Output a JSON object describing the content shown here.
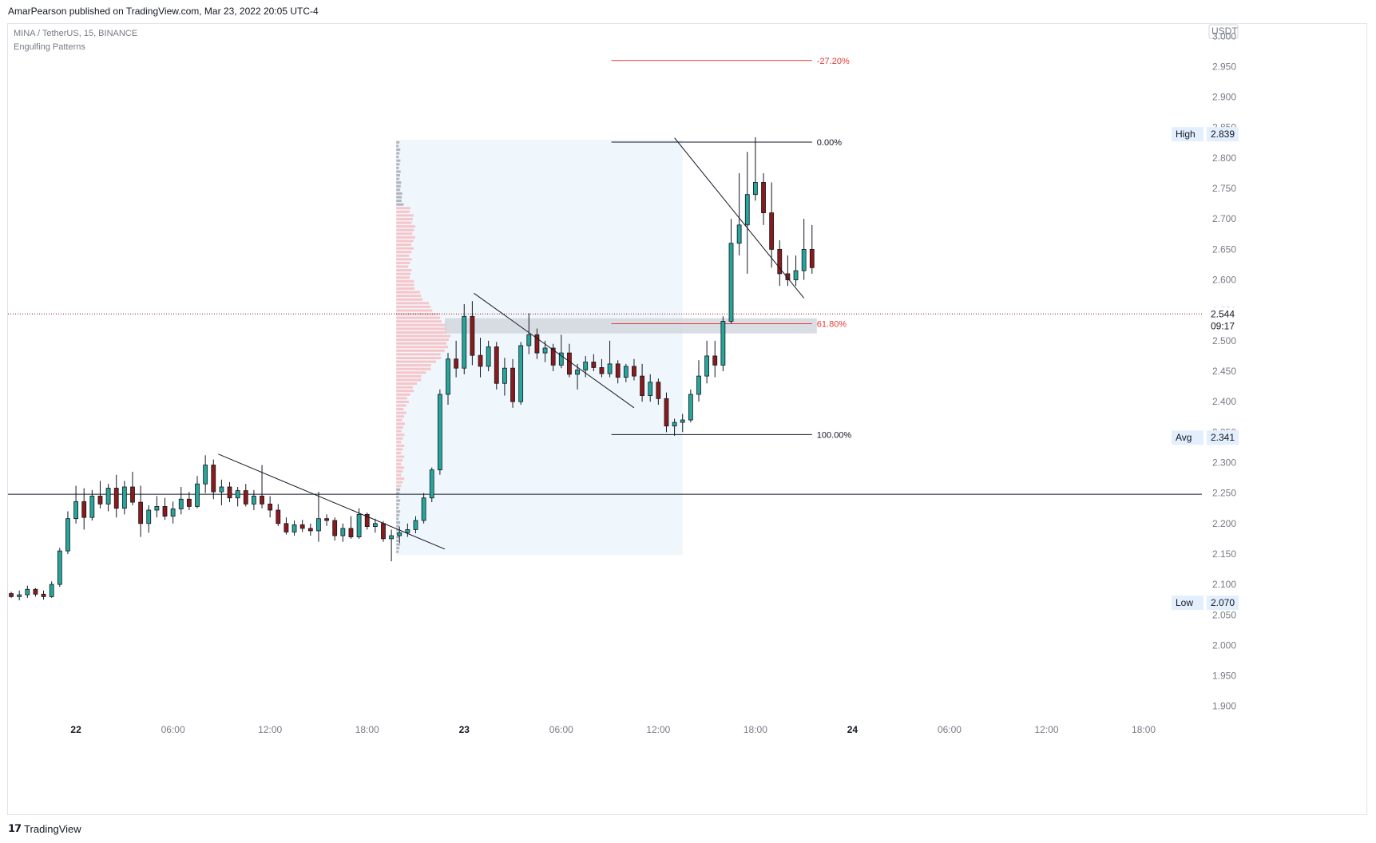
{
  "header": {
    "published": "AmarPearson published on TradingView.com, Mar 23, 2022 20:05 UTC-4"
  },
  "legend": {
    "symbol": "MINA / TetherUS, 15, BINANCE",
    "indicator": "Engulfing Patterns"
  },
  "footer": {
    "brand": "TradingView",
    "logo_icon": "tradingview-logo-icon"
  },
  "colors": {
    "up": "#26a69a",
    "down": "#8b1a1a",
    "candle_border": "#131722",
    "fib_red": "#e53935",
    "profile_grey": "#b2b5be",
    "profile_red": "#f7c5c9",
    "range_fill": "#e8f3fb",
    "zone_fill": "#d1d4dc"
  },
  "chart_data": {
    "type": "candlestick",
    "title": "MINA / TetherUS, 15, BINANCE",
    "price_axis": {
      "currency": "USDT",
      "ticks": [
        "3.000",
        "2.950",
        "2.900",
        "2.850",
        "2.800",
        "2.750",
        "2.700",
        "2.650",
        "2.600",
        "2.550",
        "2.500",
        "2.450",
        "2.400",
        "2.350",
        "2.300",
        "2.250",
        "2.200",
        "2.150",
        "2.100",
        "2.050",
        "2.000",
        "1.950",
        "1.900"
      ],
      "tick_values": [
        3.0,
        2.95,
        2.9,
        2.85,
        2.8,
        2.75,
        2.7,
        2.65,
        2.6,
        2.55,
        2.5,
        2.45,
        2.4,
        2.35,
        2.3,
        2.25,
        2.2,
        2.15,
        2.1,
        2.05,
        2.0,
        1.95,
        1.9
      ],
      "ylim": [
        1.88,
        3.02
      ]
    },
    "time_axis": {
      "ticks": [
        "22",
        "06:00",
        "12:00",
        "18:00",
        "23",
        "06:00",
        "12:00",
        "18:00",
        "24",
        "06:00",
        "12:00",
        "18:00"
      ],
      "tick_hours": [
        0,
        6,
        12,
        18,
        24,
        30,
        36,
        42,
        48,
        54,
        60,
        66
      ]
    },
    "time_range_hours": [
      -4.2,
      69.6
    ],
    "price_labels": {
      "high": {
        "label": "High",
        "value": "2.839",
        "y": 2.839
      },
      "last": {
        "value": "2.544",
        "countdown": "09:17",
        "y": 2.544
      },
      "avg": {
        "label": "Avg",
        "value": "2.341",
        "y": 2.341
      },
      "low": {
        "label": "Low",
        "value": "2.070",
        "y": 2.07
      }
    },
    "fib_levels": [
      {
        "label": "-27.20%",
        "price": 2.96,
        "color": "red"
      },
      {
        "label": "0.00%",
        "price": 2.826,
        "color": "black"
      },
      {
        "label": "61.80%",
        "price": 2.528,
        "color": "red"
      },
      {
        "label": "100.00%",
        "price": 2.346,
        "color": "black"
      }
    ],
    "fib_time_range_hours": [
      33.1,
      45.5
    ],
    "horizontal_line": 2.248,
    "range_box": {
      "t0": 19.8,
      "t1": 37.5,
      "p0": 2.148,
      "p1": 2.83
    },
    "zone_box": {
      "t0": 22.8,
      "t1": 45.8,
      "p0": 2.512,
      "p1": 2.537
    },
    "trendlines": [
      {
        "t0": 8.8,
        "p0": 2.314,
        "t1": 22.8,
        "p1": 2.158
      },
      {
        "t0": 24.6,
        "p0": 2.578,
        "t1": 34.5,
        "p1": 2.39
      },
      {
        "t0": 37.0,
        "p0": 2.833,
        "t1": 45.0,
        "p1": 2.57
      }
    ],
    "candles": [
      [
        -4.0,
        2.085,
        2.088,
        2.078,
        2.08
      ],
      [
        -3.5,
        2.08,
        2.09,
        2.074,
        2.083
      ],
      [
        -3.0,
        2.083,
        2.098,
        2.078,
        2.092
      ],
      [
        -2.5,
        2.092,
        2.094,
        2.08,
        2.084
      ],
      [
        -2.0,
        2.084,
        2.09,
        2.075,
        2.08
      ],
      [
        -1.5,
        2.08,
        2.105,
        2.078,
        2.1
      ],
      [
        -1.0,
        2.1,
        2.16,
        2.096,
        2.155
      ],
      [
        -0.5,
        2.155,
        2.22,
        2.15,
        2.208
      ],
      [
        0.0,
        2.208,
        2.262,
        2.2,
        2.236
      ],
      [
        0.5,
        2.236,
        2.258,
        2.19,
        2.21
      ],
      [
        1.0,
        2.21,
        2.255,
        2.205,
        2.245
      ],
      [
        1.5,
        2.245,
        2.27,
        2.225,
        2.232
      ],
      [
        2.0,
        2.232,
        2.265,
        2.22,
        2.258
      ],
      [
        2.5,
        2.258,
        2.28,
        2.21,
        2.225
      ],
      [
        3.0,
        2.225,
        2.27,
        2.215,
        2.26
      ],
      [
        3.5,
        2.26,
        2.285,
        2.23,
        2.235
      ],
      [
        4.0,
        2.235,
        2.262,
        2.178,
        2.2
      ],
      [
        4.5,
        2.2,
        2.23,
        2.185,
        2.222
      ],
      [
        5.0,
        2.222,
        2.245,
        2.21,
        2.228
      ],
      [
        5.5,
        2.228,
        2.242,
        2.206,
        2.212
      ],
      [
        6.0,
        2.212,
        2.236,
        2.2,
        2.224
      ],
      [
        6.5,
        2.224,
        2.26,
        2.215,
        2.24
      ],
      [
        7.0,
        2.24,
        2.252,
        2.222,
        2.228
      ],
      [
        7.5,
        2.228,
        2.278,
        2.225,
        2.265
      ],
      [
        8.0,
        2.265,
        2.312,
        2.25,
        2.296
      ],
      [
        8.5,
        2.296,
        2.305,
        2.24,
        2.252
      ],
      [
        9.0,
        2.252,
        2.272,
        2.23,
        2.26
      ],
      [
        9.5,
        2.26,
        2.268,
        2.235,
        2.242
      ],
      [
        10.0,
        2.242,
        2.26,
        2.228,
        2.254
      ],
      [
        10.5,
        2.254,
        2.265,
        2.228,
        2.232
      ],
      [
        11.0,
        2.232,
        2.255,
        2.222,
        2.245
      ],
      [
        11.5,
        2.245,
        2.296,
        2.225,
        2.232
      ],
      [
        12.0,
        2.232,
        2.245,
        2.21,
        2.222
      ],
      [
        12.5,
        2.222,
        2.232,
        2.196,
        2.2
      ],
      [
        13.0,
        2.2,
        2.21,
        2.182,
        2.186
      ],
      [
        13.5,
        2.186,
        2.205,
        2.18,
        2.198
      ],
      [
        14.0,
        2.198,
        2.206,
        2.186,
        2.192
      ],
      [
        14.5,
        2.192,
        2.2,
        2.18,
        2.188
      ],
      [
        15.0,
        2.188,
        2.252,
        2.17,
        2.208
      ],
      [
        15.5,
        2.208,
        2.215,
        2.196,
        2.205
      ],
      [
        16.0,
        2.205,
        2.21,
        2.172,
        2.18
      ],
      [
        16.5,
        2.18,
        2.2,
        2.17,
        2.192
      ],
      [
        17.0,
        2.192,
        2.212,
        2.175,
        2.178
      ],
      [
        17.5,
        2.178,
        2.225,
        2.175,
        2.215
      ],
      [
        18.0,
        2.215,
        2.218,
        2.19,
        2.195
      ],
      [
        18.5,
        2.195,
        2.208,
        2.185,
        2.2
      ],
      [
        19.0,
        2.2,
        2.204,
        2.17,
        2.175
      ],
      [
        19.5,
        2.175,
        2.19,
        2.138,
        2.18
      ],
      [
        20.0,
        2.18,
        2.195,
        2.168,
        2.185
      ],
      [
        20.5,
        2.185,
        2.2,
        2.178,
        2.19
      ],
      [
        21.0,
        2.19,
        2.212,
        2.184,
        2.205
      ],
      [
        21.5,
        2.205,
        2.25,
        2.2,
        2.242
      ],
      [
        22.0,
        2.242,
        2.292,
        2.235,
        2.288
      ],
      [
        22.5,
        2.288,
        2.42,
        2.28,
        2.412
      ],
      [
        23.0,
        2.412,
        2.48,
        2.395,
        2.47
      ],
      [
        23.5,
        2.47,
        2.5,
        2.44,
        2.455
      ],
      [
        24.0,
        2.455,
        2.56,
        2.445,
        2.54
      ],
      [
        24.5,
        2.54,
        2.565,
        2.46,
        2.476
      ],
      [
        25.0,
        2.476,
        2.505,
        2.44,
        2.458
      ],
      [
        25.5,
        2.458,
        2.5,
        2.45,
        2.49
      ],
      [
        26.0,
        2.49,
        2.498,
        2.42,
        2.43
      ],
      [
        26.5,
        2.43,
        2.472,
        2.41,
        2.455
      ],
      [
        27.0,
        2.455,
        2.47,
        2.39,
        2.4
      ],
      [
        27.5,
        2.4,
        2.498,
        2.395,
        2.492
      ],
      [
        28.0,
        2.492,
        2.545,
        2.478,
        2.51
      ],
      [
        28.5,
        2.51,
        2.52,
        2.47,
        2.48
      ],
      [
        29.0,
        2.48,
        2.5,
        2.465,
        2.488
      ],
      [
        29.5,
        2.488,
        2.495,
        2.45,
        2.46
      ],
      [
        30.0,
        2.46,
        2.51,
        2.455,
        2.48
      ],
      [
        30.5,
        2.48,
        2.495,
        2.44,
        2.445
      ],
      [
        31.0,
        2.445,
        2.462,
        2.42,
        2.452
      ],
      [
        31.5,
        2.452,
        2.475,
        2.44,
        2.465
      ],
      [
        32.0,
        2.465,
        2.478,
        2.45,
        2.456
      ],
      [
        32.5,
        2.456,
        2.47,
        2.44,
        2.446
      ],
      [
        33.0,
        2.446,
        2.5,
        2.44,
        2.462
      ],
      [
        33.5,
        2.462,
        2.468,
        2.43,
        2.44
      ],
      [
        34.0,
        2.44,
        2.462,
        2.432,
        2.458
      ],
      [
        34.5,
        2.458,
        2.47,
        2.435,
        2.442
      ],
      [
        35.0,
        2.442,
        2.462,
        2.4,
        2.41
      ],
      [
        35.5,
        2.41,
        2.445,
        2.4,
        2.432
      ],
      [
        36.0,
        2.432,
        2.438,
        2.395,
        2.405
      ],
      [
        36.5,
        2.405,
        2.415,
        2.35,
        2.36
      ],
      [
        37.0,
        2.36,
        2.372,
        2.344,
        2.366
      ],
      [
        37.5,
        2.366,
        2.38,
        2.35,
        2.37
      ],
      [
        38.0,
        2.37,
        2.42,
        2.366,
        2.412
      ],
      [
        38.5,
        2.412,
        2.468,
        2.4,
        2.442
      ],
      [
        39.0,
        2.442,
        2.5,
        2.43,
        2.475
      ],
      [
        39.5,
        2.475,
        2.5,
        2.44,
        2.46
      ],
      [
        40.0,
        2.46,
        2.54,
        2.45,
        2.532
      ],
      [
        40.5,
        2.532,
        2.7,
        2.528,
        2.66
      ],
      [
        41.0,
        2.66,
        2.775,
        2.64,
        2.69
      ],
      [
        41.5,
        2.69,
        2.81,
        2.61,
        2.74
      ],
      [
        42.0,
        2.74,
        2.834,
        2.73,
        2.76
      ],
      [
        42.5,
        2.76,
        2.775,
        2.69,
        2.71
      ],
      [
        43.0,
        2.71,
        2.76,
        2.62,
        2.65
      ],
      [
        43.5,
        2.65,
        2.665,
        2.59,
        2.61
      ],
      [
        44.0,
        2.61,
        2.64,
        2.59,
        2.6
      ],
      [
        44.5,
        2.6,
        2.64,
        2.59,
        2.615
      ],
      [
        45.0,
        2.615,
        2.7,
        2.6,
        2.65
      ],
      [
        45.5,
        2.65,
        2.69,
        2.61,
        2.62
      ]
    ]
  }
}
